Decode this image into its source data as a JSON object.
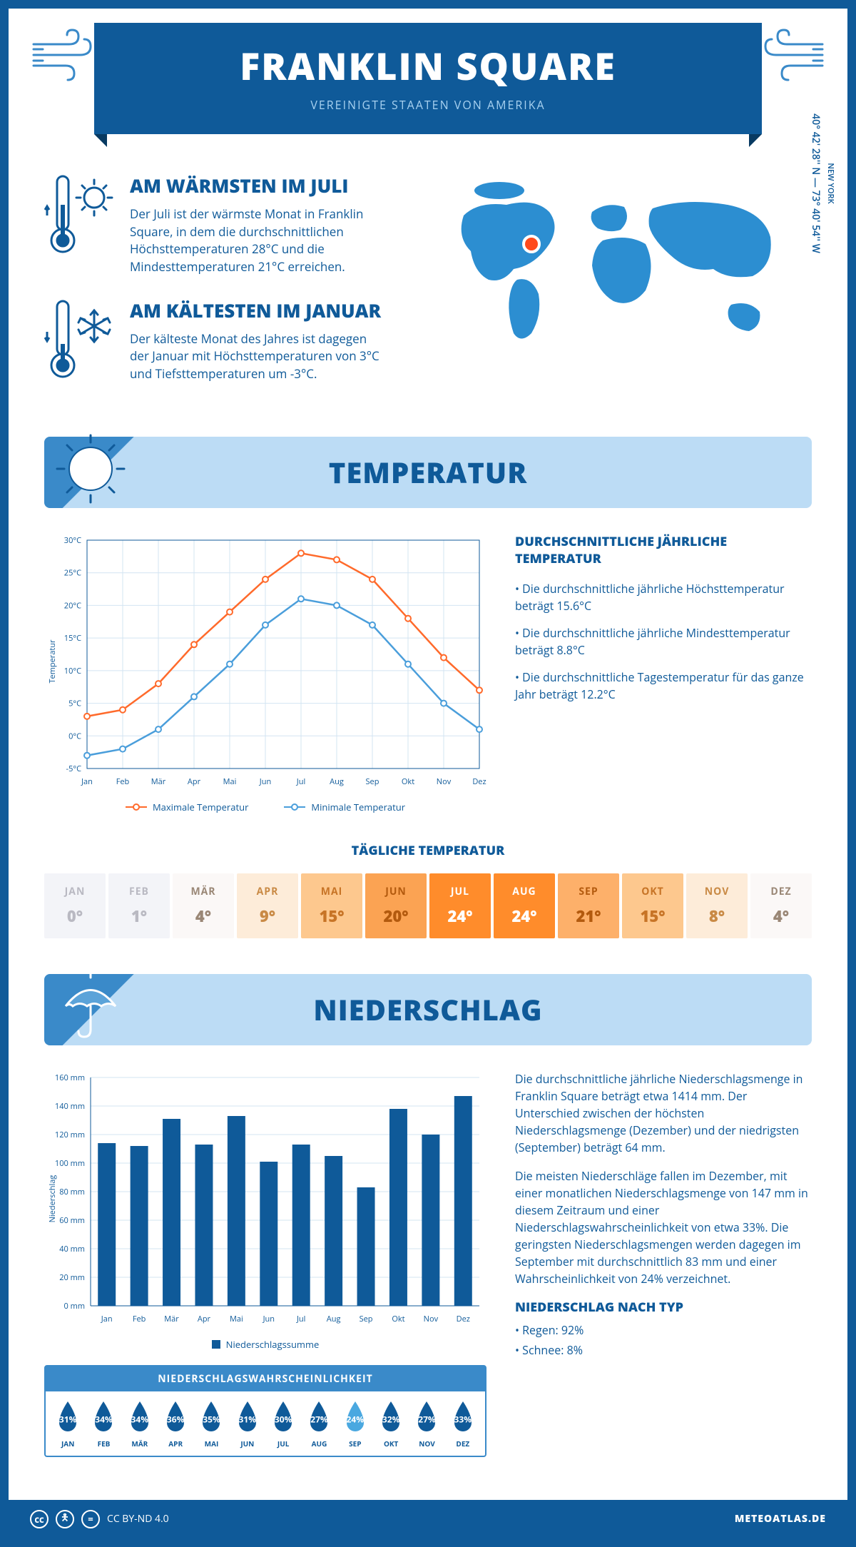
{
  "header": {
    "title": "FRANKLIN SQUARE",
    "subtitle": "VEREINIGTE STAATEN VON AMERIKA"
  },
  "location": {
    "region": "NEW YORK",
    "coords": "40° 42' 28'' N — 73° 40' 54'' W",
    "marker_color": "#ff4a1c"
  },
  "warmest": {
    "title": "AM WÄRMSTEN IM JULI",
    "text": "Der Juli ist der wärmste Monat in Franklin Square, in dem die durchschnittlichen Höchsttemperaturen 28°C und die Mindesttemperaturen 21°C erreichen."
  },
  "coldest": {
    "title": "AM KÄLTESTEN IM JANUAR",
    "text": "Der kälteste Monat des Jahres ist dagegen der Januar mit Höchsttemperaturen von 3°C und Tiefsttemperaturen um -3°C."
  },
  "temperature_section": {
    "title": "TEMPERATUR",
    "side_title": "DURCHSCHNITTLICHE JÄHRLICHE TEMPERATUR",
    "bullets": [
      "• Die durchschnittliche jährliche Höchsttemperatur beträgt 15.6°C",
      "• Die durchschnittliche jährliche Mindesttemperatur beträgt 8.8°C",
      "• Die durchschnittliche Tagestemperatur für das ganze Jahr beträgt 12.2°C"
    ],
    "chart": {
      "type": "line",
      "months": [
        "Jan",
        "Feb",
        "Mär",
        "Apr",
        "Mai",
        "Jun",
        "Jul",
        "Aug",
        "Sep",
        "Okt",
        "Nov",
        "Dez"
      ],
      "ylabel": "Temperatur",
      "ylim": [
        -5,
        30
      ],
      "ytick_step": 5,
      "ytick_suffix": "°C",
      "grid_color": "#d3e4f2",
      "axis_color": "#0f5a99",
      "series": [
        {
          "name": "Maximale Temperatur",
          "color": "#ff6a2b",
          "values": [
            3,
            4,
            8,
            14,
            19,
            24,
            28,
            27,
            24,
            18,
            12,
            7
          ]
        },
        {
          "name": "Minimale Temperatur",
          "color": "#4a9edb",
          "values": [
            -3,
            -2,
            1,
            6,
            11,
            17,
            21,
            20,
            17,
            11,
            5,
            1
          ]
        }
      ]
    },
    "daily_title": "TÄGLICHE TEMPERATUR",
    "daily": {
      "months": [
        "JAN",
        "FEB",
        "MÄR",
        "APR",
        "MAI",
        "JUN",
        "JUL",
        "AUG",
        "SEP",
        "OKT",
        "NOV",
        "DEZ"
      ],
      "temps": [
        "0°",
        "1°",
        "4°",
        "9°",
        "15°",
        "20°",
        "24°",
        "24°",
        "21°",
        "15°",
        "8°",
        "4°"
      ],
      "bg_colors": [
        "#f3f4f8",
        "#f3f4f8",
        "#fbf8f7",
        "#fdecd9",
        "#fdc88e",
        "#fba353",
        "#ff8c2b",
        "#ff8c2b",
        "#fdb06a",
        "#fdc88e",
        "#fdecd9",
        "#fbf8f7"
      ],
      "text_colors": [
        "#b9b9c2",
        "#b9b9c2",
        "#9a8776",
        "#c98a45",
        "#c77426",
        "#b35a0e",
        "#ffffff",
        "#ffffff",
        "#b35a0e",
        "#c77426",
        "#c98a45",
        "#9a8776"
      ]
    }
  },
  "precip_section": {
    "title": "NIEDERSCHLAG",
    "chart": {
      "type": "bar",
      "months": [
        "Jan",
        "Feb",
        "Mär",
        "Apr",
        "Mai",
        "Jun",
        "Jul",
        "Aug",
        "Sep",
        "Okt",
        "Nov",
        "Dez"
      ],
      "values": [
        114,
        112,
        131,
        113,
        133,
        101,
        113,
        105,
        83,
        138,
        120,
        147
      ],
      "ylabel": "Niederschlag",
      "ylim": [
        0,
        160
      ],
      "ytick_step": 20,
      "ytick_suffix": " mm",
      "bar_color": "#0f5a99",
      "grid_color": "#d3e4f2",
      "legend": "Niederschlagssumme"
    },
    "paragraphs": [
      "Die durchschnittliche jährliche Niederschlagsmenge in Franklin Square beträgt etwa 1414 mm. Der Unterschied zwischen der höchsten Niederschlagsmenge (Dezember) und der niedrigsten (September) beträgt 64 mm.",
      "Die meisten Niederschläge fallen im Dezember, mit einer monatlichen Niederschlagsmenge von 147 mm in diesem Zeitraum und einer Niederschlagswahrscheinlichkeit von etwa 33%. Die geringsten Niederschlagsmengen werden dagegen im September mit durchschnittlich 83 mm und einer Wahrscheinlichkeit von 24% verzeichnet."
    ],
    "type_title": "NIEDERSCHLAG NACH TYP",
    "types": [
      "• Regen: 92%",
      "• Schnee: 8%"
    ],
    "probability": {
      "title": "NIEDERSCHLAGSWAHRSCHEINLICHKEIT",
      "months": [
        "JAN",
        "FEB",
        "MÄR",
        "APR",
        "MAI",
        "JUN",
        "JUL",
        "AUG",
        "SEP",
        "OKT",
        "NOV",
        "DEZ"
      ],
      "values": [
        "31%",
        "34%",
        "34%",
        "36%",
        "35%",
        "31%",
        "30%",
        "27%",
        "24%",
        "32%",
        "27%",
        "33%"
      ],
      "colors": [
        "#0f5a99",
        "#0f5a99",
        "#0f5a99",
        "#0f5a99",
        "#0f5a99",
        "#0f5a99",
        "#0f5a99",
        "#0f5a99",
        "#4aa8e0",
        "#0f5a99",
        "#0f5a99",
        "#0f5a99"
      ]
    }
  },
  "footer": {
    "license": "CC BY-ND 4.0",
    "site": "METEOATLAS.DE"
  },
  "colors": {
    "primary": "#0f5a99",
    "light_blue": "#bcdcf5",
    "accent": "#3a8ac9"
  }
}
